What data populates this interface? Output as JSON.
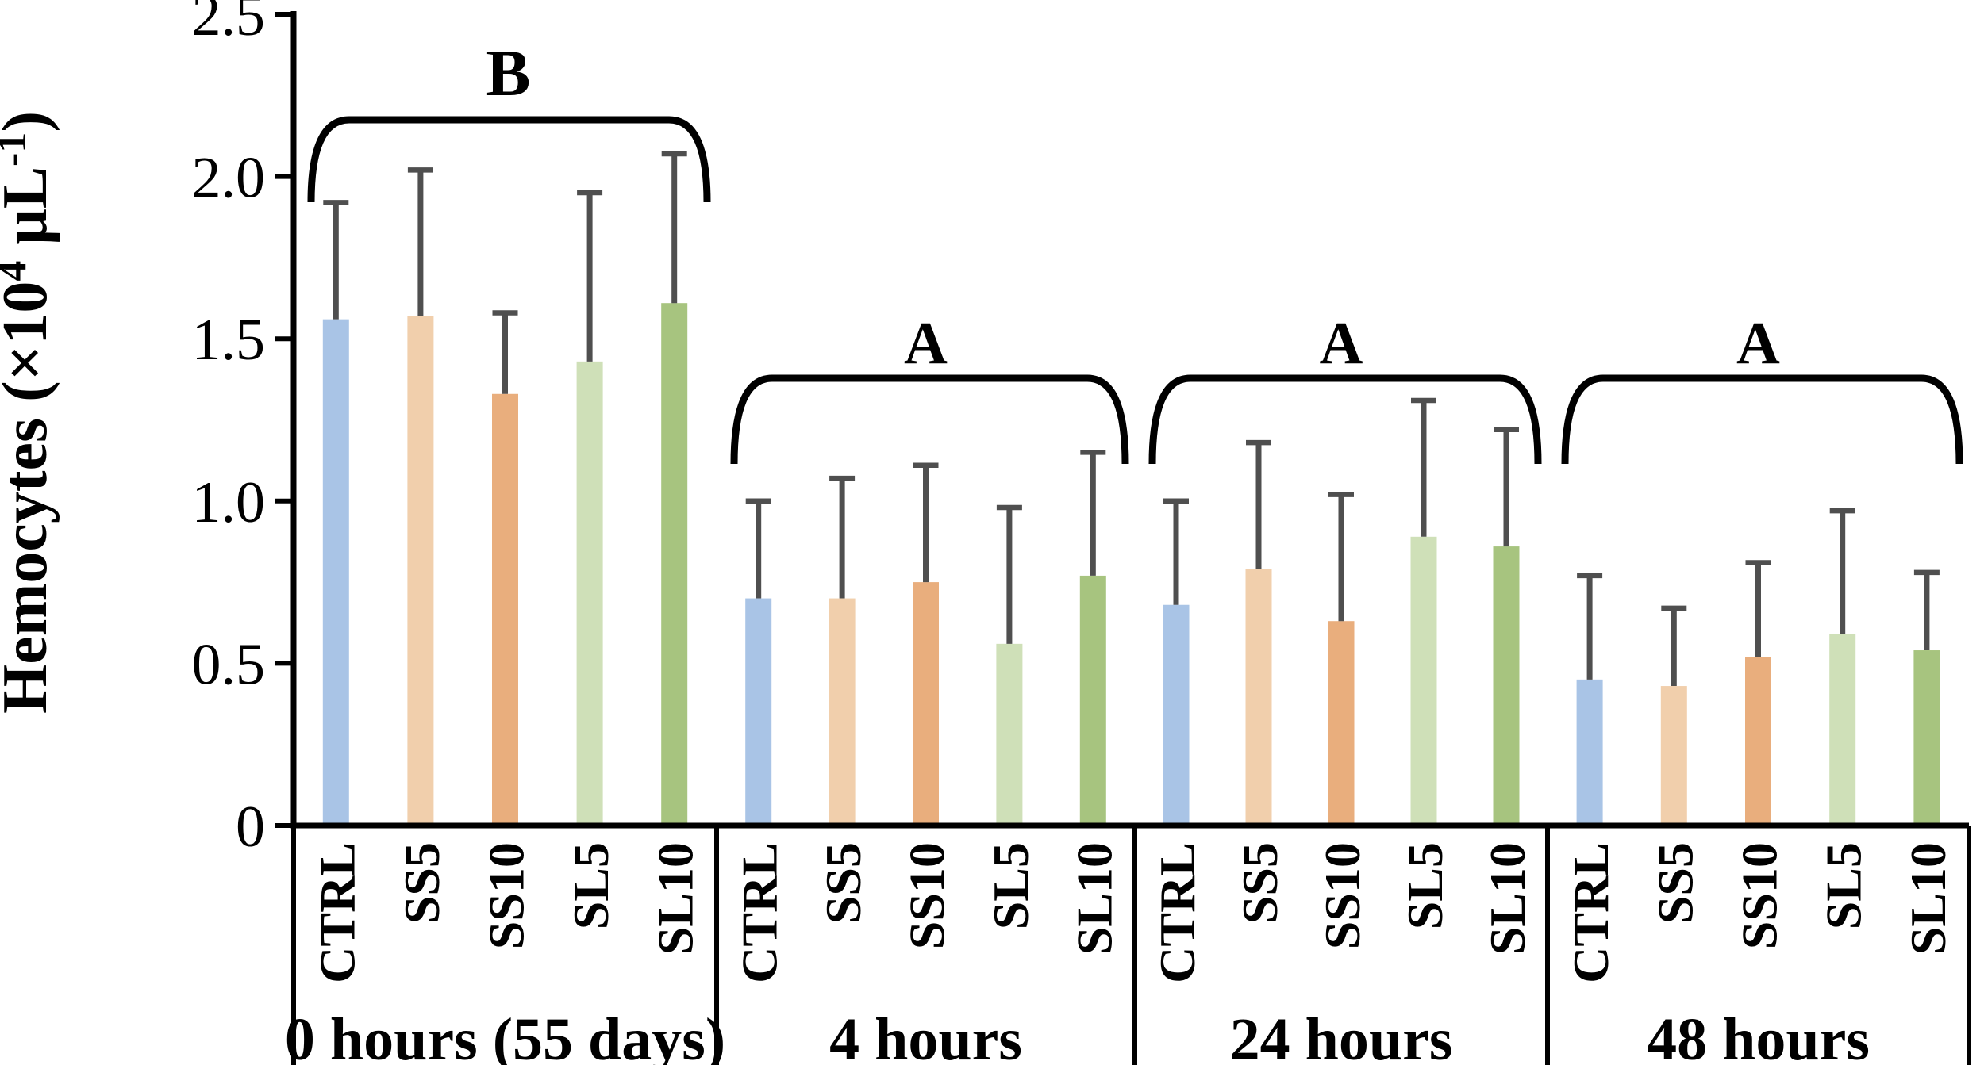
{
  "figure": {
    "background": "#ffffff",
    "axis_color": "#000000",
    "error_bar_color": "#4F4F4F"
  },
  "chart_data": {
    "type": "bar",
    "title": "",
    "xlabel": "",
    "ylabel": "Hemocytes (×10⁴ μL⁻¹)",
    "ylabel_parts": [
      {
        "text": "Hemocytes (×10",
        "sup": false
      },
      {
        "text": "4",
        "sup": true
      },
      {
        "text": " μL",
        "sup": false
      },
      {
        "text": "-1",
        "sup": true
      },
      {
        "text": ")",
        "sup": false
      }
    ],
    "ylim": [
      0,
      2.5
    ],
    "yticks": [
      0,
      0.5,
      1.0,
      1.5,
      2.0,
      2.5
    ],
    "ytick_labels": [
      "0",
      "0.5",
      "1.0",
      "1.5",
      "2.0",
      "2.5"
    ],
    "grid": false,
    "legend": "none",
    "treatments": [
      "CTRL",
      "SS5",
      "SS10",
      "SL5",
      "SL10"
    ],
    "bar_colors": {
      "CTRL": "#A9C4E6",
      "SS5": "#F1CFAC",
      "SS10": "#E9AE7D",
      "SL5": "#CFE0B8",
      "SL10": "#A7C47F"
    },
    "groups": [
      {
        "label": "0 hours (55 days)",
        "significance": "B",
        "values": [
          1.56,
          1.57,
          1.33,
          1.43,
          1.61
        ],
        "error_tops": [
          1.92,
          2.02,
          1.58,
          1.95,
          2.07
        ]
      },
      {
        "label": "4 hours",
        "significance": "A",
        "values": [
          0.7,
          0.7,
          0.75,
          0.56,
          0.77
        ],
        "error_tops": [
          1.0,
          1.07,
          1.11,
          0.98,
          1.15
        ]
      },
      {
        "label": "24 hours",
        "significance": "A",
        "values": [
          0.68,
          0.79,
          0.63,
          0.89,
          0.86
        ],
        "error_tops": [
          1.0,
          1.18,
          1.02,
          1.31,
          1.22
        ]
      },
      {
        "label": "48 hours",
        "significance": "A",
        "values": [
          0.45,
          0.43,
          0.52,
          0.59,
          0.54
        ],
        "error_tops": [
          0.77,
          0.67,
          0.81,
          0.97,
          0.78
        ]
      }
    ]
  }
}
